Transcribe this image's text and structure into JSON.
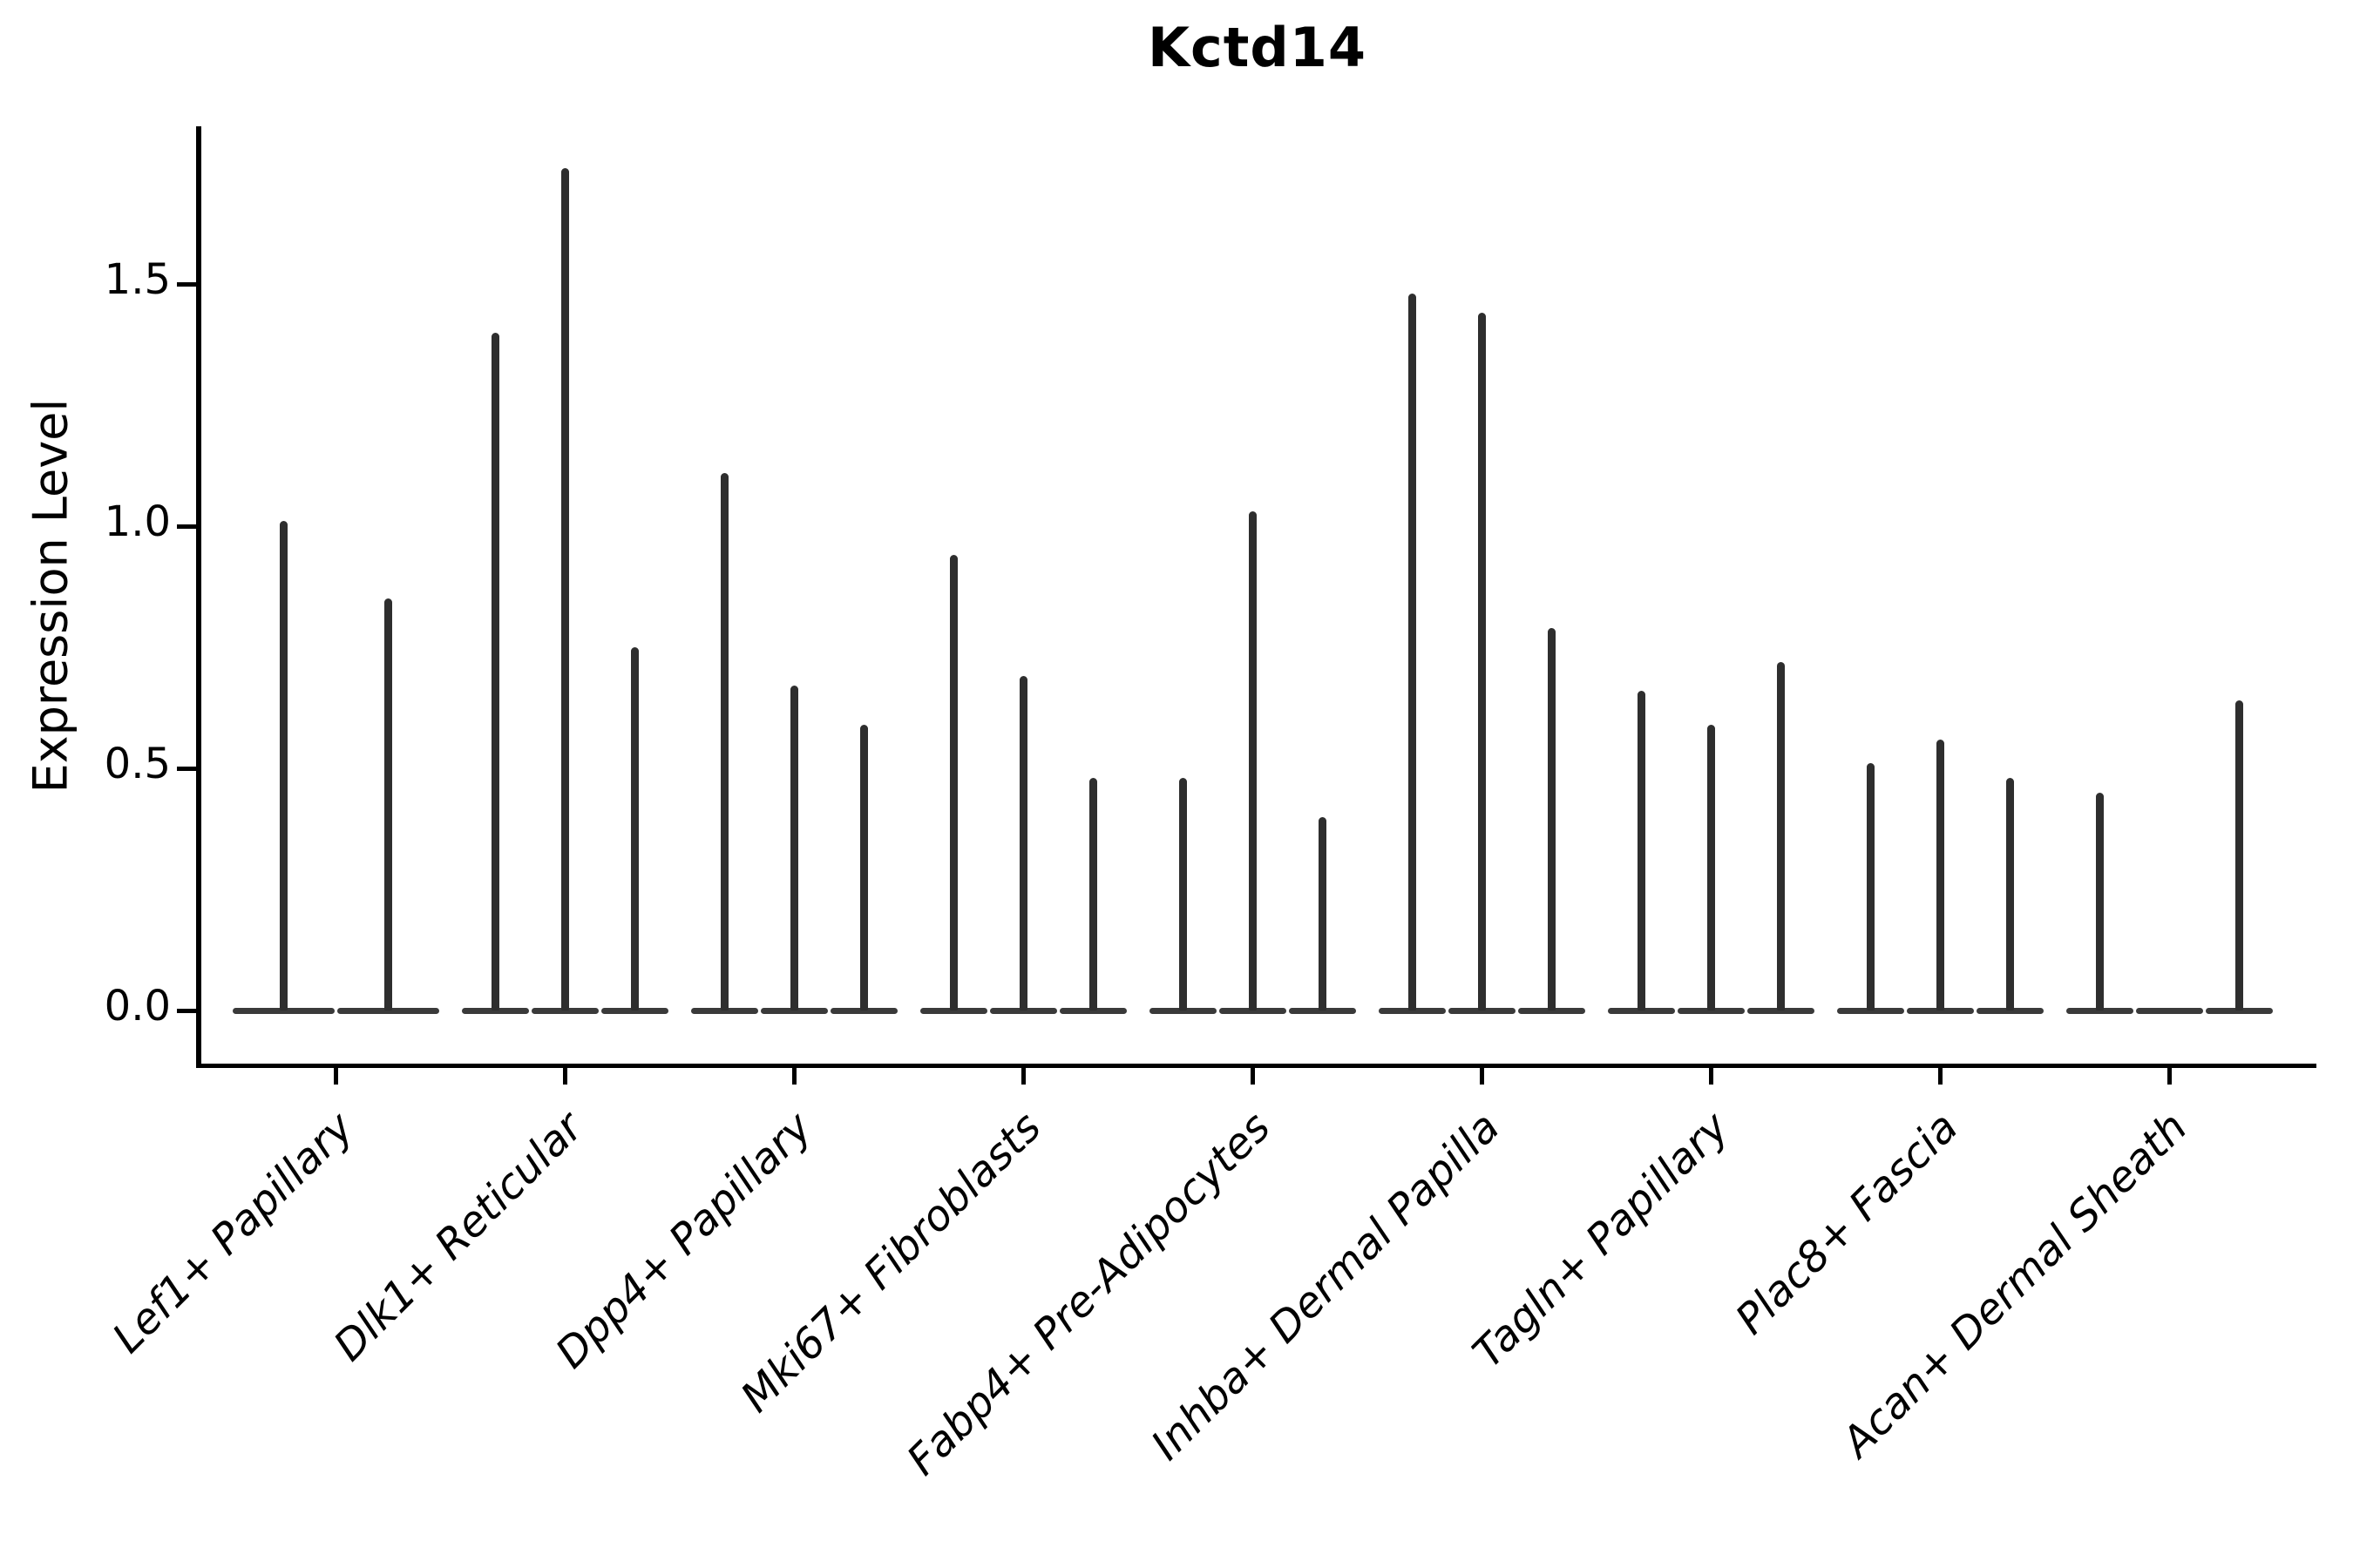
{
  "chart_data": {
    "type": "violin",
    "title": "Kctd14",
    "ylabel": "Expression Level",
    "xlabel": "",
    "ytick_labels": [
      "0.0",
      "0.5",
      "1.0",
      "1.5"
    ],
    "ylim": [
      0,
      1.82
    ],
    "grid": false,
    "legend_position": "none",
    "description": "Seurat-style stacked violin plot of Kctd14 expression; violins are near-zero-width spikes rising from a flat zero-expression base line, grouped 2-3 violins per cell-type category",
    "categories": [
      {
        "label": "Lef1+ Papillary",
        "violin_maxima": [
          1.01,
          0.85
        ]
      },
      {
        "label": "Dlk1+ Reticular",
        "violin_maxima": [
          1.4,
          1.74,
          0.75
        ]
      },
      {
        "label": "Dpp4+ Papillary",
        "violin_maxima": [
          1.11,
          0.67,
          0.59
        ]
      },
      {
        "label": "Mki67+ Fibroblasts",
        "violin_maxima": [
          0.94,
          0.69,
          0.48
        ]
      },
      {
        "label": "Fabp4+ Pre-Adipocytes",
        "violin_maxima": [
          0.48,
          1.03,
          0.4
        ]
      },
      {
        "label": "Inhba+ Dermal Papilla",
        "violin_maxima": [
          1.48,
          1.44,
          0.79
        ]
      },
      {
        "label": "Tagln+ Papillary",
        "violin_maxima": [
          0.66,
          0.59,
          0.72
        ]
      },
      {
        "label": "Plac8+ Fascia",
        "violin_maxima": [
          0.51,
          0.56,
          0.48
        ]
      },
      {
        "label": "Acan+ Dermal Sheath",
        "violin_maxima": [
          0.45,
          0.0,
          0.64
        ]
      }
    ],
    "colors": {
      "spike": "#2e2e2e",
      "base_line": "#3a3a3a",
      "axis": "#000000",
      "text": "#000000",
      "background": "#ffffff"
    }
  }
}
